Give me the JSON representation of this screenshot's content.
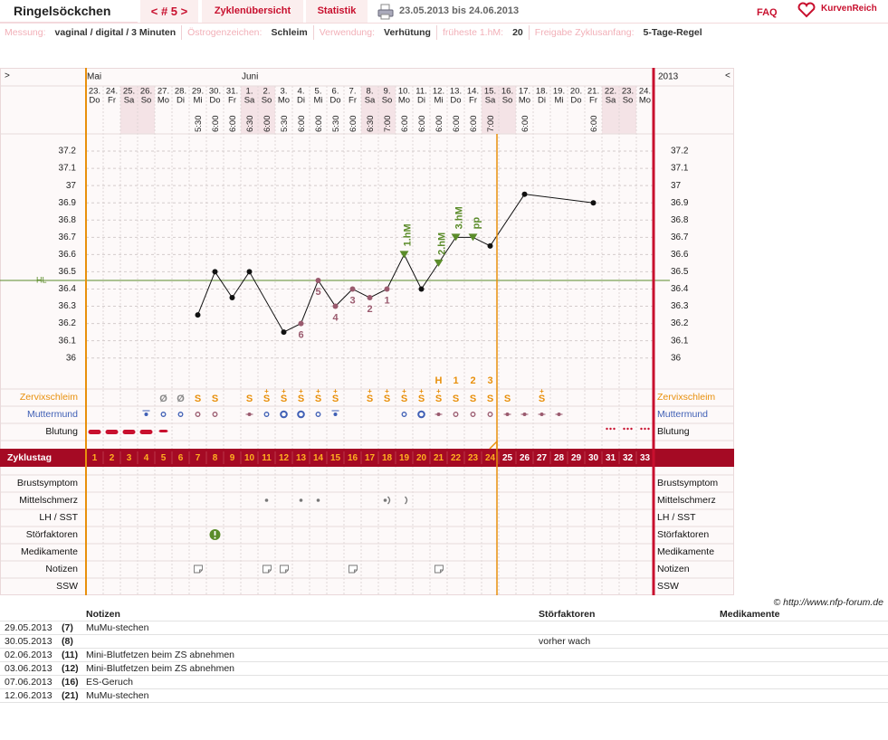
{
  "header": {
    "title": "Ringelsöckchen",
    "nav": "< # 5 >",
    "tabs": [
      "Zyklenübersicht",
      "Statistik"
    ],
    "date_range": "23.05.2013 bis 24.06.2013",
    "faq": "FAQ",
    "logo": "KurvenReich"
  },
  "settings": [
    {
      "label": "Messung:",
      "value": "vaginal / digital / 3 Minuten"
    },
    {
      "label": "Östrogenzeichen:",
      "value": "Schleim"
    },
    {
      "label": "Verwendung:",
      "value": "Verhütung"
    },
    {
      "label": "früheste 1.hM:",
      "value": 20
    },
    {
      "label": "Freigabe Zyklusanfang:",
      "value": "5-Tage-Regel"
    }
  ],
  "chart_data": {
    "type": "line",
    "scroll": [
      ">",
      "<"
    ],
    "year": "2013",
    "days": [
      {
        "date": "23.",
        "weekday": "Do",
        "month": "Mai"
      },
      {
        "date": "24.",
        "weekday": "Fr"
      },
      {
        "date": "25.",
        "weekday": "Sa"
      },
      {
        "date": "26.",
        "weekday": "So"
      },
      {
        "date": "27.",
        "weekday": "Mo"
      },
      {
        "date": "28.",
        "weekday": "Di"
      },
      {
        "date": "29.",
        "weekday": "Mi",
        "time": "5:30"
      },
      {
        "date": "30.",
        "weekday": "Do",
        "time": "6:00"
      },
      {
        "date": "31.",
        "weekday": "Fr",
        "time": "6:00"
      },
      {
        "date": "1.",
        "weekday": "Sa",
        "month": "Juni",
        "time": "6:30"
      },
      {
        "date": "2.",
        "weekday": "So",
        "time": "6:00"
      },
      {
        "date": "3.",
        "weekday": "Mo",
        "time": "5:30"
      },
      {
        "date": "4.",
        "weekday": "Di",
        "time": "6:00"
      },
      {
        "date": "5.",
        "weekday": "Mi",
        "time": "6:00"
      },
      {
        "date": "6.",
        "weekday": "Do",
        "time": "5:30"
      },
      {
        "date": "7.",
        "weekday": "Fr",
        "time": "6:00"
      },
      {
        "date": "8.",
        "weekday": "Sa",
        "time": "6:30"
      },
      {
        "date": "9.",
        "weekday": "So",
        "time": "7:00"
      },
      {
        "date": "10.",
        "weekday": "Mo",
        "time": "6:00"
      },
      {
        "date": "11.",
        "weekday": "Di",
        "time": "6:00"
      },
      {
        "date": "12.",
        "weekday": "Mi",
        "time": "6:00"
      },
      {
        "date": "13.",
        "weekday": "Do",
        "time": "6:00"
      },
      {
        "date": "14.",
        "weekday": "Fr",
        "time": "6:00"
      },
      {
        "date": "15.",
        "weekday": "Sa",
        "time": "7:00"
      },
      {
        "date": "16.",
        "weekday": "So"
      },
      {
        "date": "17.",
        "weekday": "Mo",
        "time": "6:00"
      },
      {
        "date": "18.",
        "weekday": "Di"
      },
      {
        "date": "19.",
        "weekday": "Mi"
      },
      {
        "date": "20.",
        "weekday": "Do"
      },
      {
        "date": "21.",
        "weekday": "Fr",
        "time": "6:00"
      },
      {
        "date": "22.",
        "weekday": "Sa"
      },
      {
        "date": "23.",
        "weekday": "So"
      },
      {
        "date": "24.",
        "weekday": "Mo"
      }
    ],
    "cycle_days": [
      1,
      2,
      3,
      4,
      5,
      6,
      7,
      8,
      9,
      10,
      11,
      12,
      13,
      14,
      15,
      16,
      17,
      18,
      19,
      20,
      21,
      22,
      23,
      24,
      25,
      26,
      27,
      28,
      29,
      30,
      31,
      32,
      33
    ],
    "x": [
      7,
      8,
      9,
      10,
      12,
      13,
      14,
      15,
      16,
      17,
      18,
      19,
      20,
      21,
      22,
      23,
      24,
      26,
      30
    ],
    "values": [
      36.25,
      36.5,
      36.35,
      36.5,
      36.15,
      36.2,
      36.45,
      36.3,
      36.4,
      36.35,
      36.4,
      36.6,
      36.4,
      36.55,
      36.7,
      36.7,
      36.65,
      36.95,
      36.9
    ],
    "point_colors": [
      "#111",
      "#111",
      "#111",
      "#111",
      "#111",
      "#9a5a6e",
      "#9a5a6e",
      "#9a5a6e",
      "#9a5a6e",
      "#9a5a6e",
      "#9a5a6e",
      "#5b8c2a",
      "#111",
      "#5b8c2a",
      "#5b8c2a",
      "#5b8c2a",
      "#111",
      "#111",
      "#111"
    ],
    "point_notes": [
      null,
      null,
      null,
      null,
      null,
      "6",
      "5",
      "4",
      "3",
      "2",
      "1",
      null,
      null,
      null,
      null,
      null,
      null,
      null,
      null
    ],
    "markers": [
      null,
      null,
      null,
      null,
      null,
      null,
      null,
      null,
      null,
      null,
      null,
      "1.hM",
      null,
      "2.hM",
      "3.hM",
      "pp",
      null,
      null,
      null
    ],
    "line_color": "#111",
    "xlim": [
      0.5,
      33.5
    ],
    "ylim": [
      35.82,
      37.3
    ],
    "yticks": [
      36,
      36.1,
      36.2,
      36.3,
      36.4,
      36.5,
      36.6,
      36.7,
      36.8,
      36.9,
      37,
      37.1,
      37.2
    ],
    "grid": true,
    "cover_line": {
      "value": 36.45,
      "label": "HL",
      "color": "#5b8c2a"
    },
    "peak_labels": [
      {
        "day": 21,
        "label": "H"
      },
      {
        "day": 22,
        "label": "1"
      },
      {
        "day": 23,
        "label": "2"
      },
      {
        "day": 24,
        "label": "3"
      }
    ],
    "cervical": [
      {
        "day": 5,
        "sign": "Ø"
      },
      {
        "day": 6,
        "sign": "Ø"
      },
      {
        "day": 7,
        "sign": "S"
      },
      {
        "day": 8,
        "sign": "S"
      },
      {
        "day": 10,
        "sign": "S"
      },
      {
        "day": 11,
        "sign": "S",
        "plus": "+"
      },
      {
        "day": 12,
        "sign": "S",
        "plus": "+"
      },
      {
        "day": 13,
        "sign": "S",
        "plus": "+"
      },
      {
        "day": 14,
        "sign": "S",
        "plus": "+"
      },
      {
        "day": 15,
        "sign": "S",
        "plus": "+"
      },
      {
        "day": 17,
        "sign": "S",
        "plus": "+"
      },
      {
        "day": 18,
        "sign": "S",
        "plus": "+"
      },
      {
        "day": 19,
        "sign": "S",
        "plus": "+"
      },
      {
        "day": 20,
        "sign": "S",
        "plus": "+"
      },
      {
        "day": 21,
        "sign": "S",
        "plus": "+"
      },
      {
        "day": 22,
        "sign": "S"
      },
      {
        "day": 23,
        "sign": "S"
      },
      {
        "day": 24,
        "sign": "S"
      },
      {
        "day": 25,
        "sign": "S"
      },
      {
        "day": 27,
        "sign": "S",
        "plus": "+"
      }
    ],
    "rows": [
      {
        "label": "Zervixschleim",
        "color": "#e8900c"
      },
      {
        "label": "Muttermund",
        "color": "#3f5fb5"
      },
      {
        "label": "Blutung",
        "color": "#111"
      },
      {
        "label": "Zyklustag",
        "color": "#fff"
      },
      {
        "label": "Brustsymptom",
        "color": "#111"
      },
      {
        "label": "Mittelschmerz",
        "color": "#111"
      },
      {
        "label": "LH / SST",
        "color": "#111"
      },
      {
        "label": "Störfaktoren",
        "color": "#111"
      },
      {
        "label": "Medikamente",
        "color": "#111"
      },
      {
        "label": "Notizen",
        "color": "#111"
      },
      {
        "label": "SSW",
        "color": "#111"
      }
    ]
  },
  "copyright": "© http://www.nfp-forum.de",
  "notes_table": {
    "headers": [
      "Notizen",
      "Störfaktoren",
      "Medikamente"
    ],
    "rows": [
      {
        "date": "29.05.2013",
        "day": "(7)",
        "note": "MuMu-stechen"
      },
      {
        "date": "30.05.2013",
        "day": "(8)",
        "disturbance": "vorher wach"
      },
      {
        "date": "02.06.2013",
        "day": "(11)",
        "note": "Mini-Blutfetzen beim ZS abnehmen"
      },
      {
        "date": "03.06.2013",
        "day": "(12)",
        "note": "Mini-Blutfetzen beim ZS abnehmen"
      },
      {
        "date": "07.06.2013",
        "day": "(16)",
        "note": "ES-Geruch"
      },
      {
        "date": "12.06.2013",
        "day": "(21)",
        "note": "MuMu-stechen"
      }
    ]
  }
}
